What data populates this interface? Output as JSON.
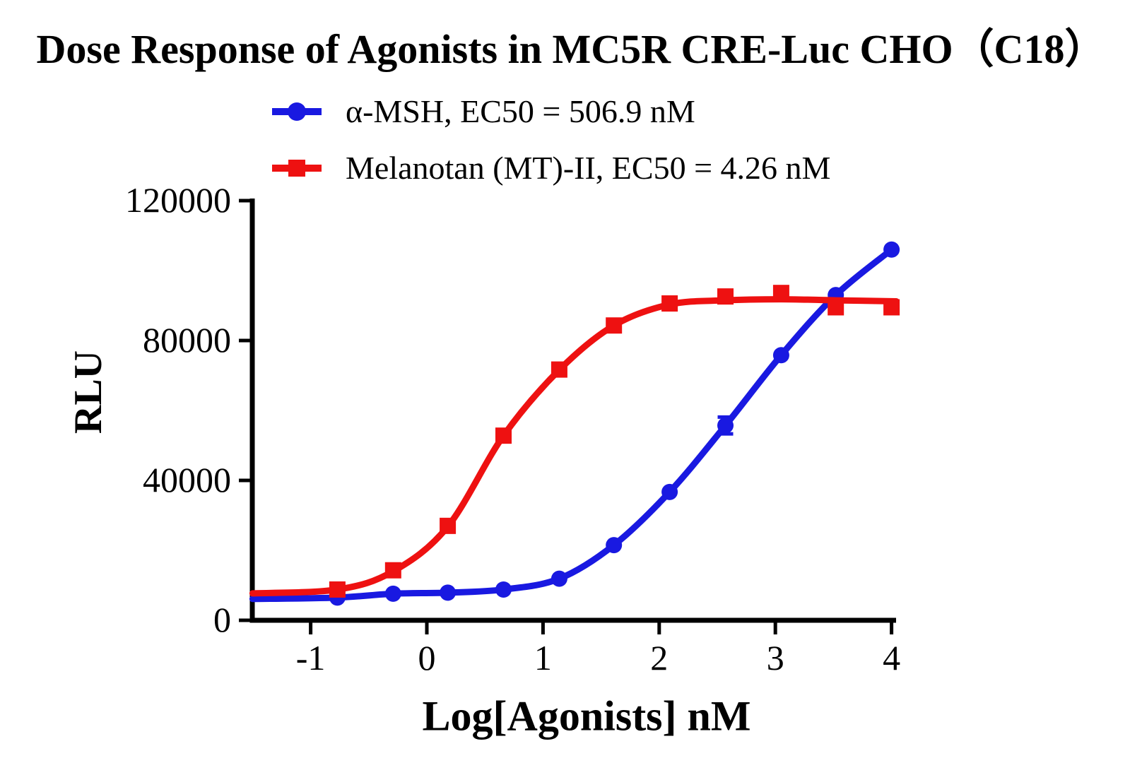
{
  "title": "Dose Response of Agonists in MC5R CRE-Luc CHO（C18）",
  "legend": [
    {
      "label": "α-MSH, EC50 = 506.9 nM",
      "marker": "circle",
      "color": "#1919e1"
    },
    {
      "label": "Melanotan (MT)-II, EC50 = 4.26 nM",
      "marker": "square",
      "color": "#ee1111"
    }
  ],
  "axes": {
    "xlabel": "Log[Agonists] nM",
    "ylabel": "RLU"
  },
  "colors": {
    "axis": "#000000",
    "background": "#ffffff"
  },
  "chart_data": {
    "type": "line",
    "title": "Dose Response of Agonists in MC5R CRE-Luc CHO（C18）",
    "xlabel": "Log[Agonists] nM",
    "ylabel": "RLU",
    "xlim": [
      -1.5,
      4.05
    ],
    "ylim": [
      0,
      120000
    ],
    "x_ticks": [
      -1,
      0,
      1,
      2,
      3,
      4
    ],
    "y_ticks": [
      0,
      40000,
      80000,
      120000
    ],
    "grid": false,
    "legend_position": "top",
    "x": [
      -0.77,
      -0.29,
      0.18,
      0.66,
      1.14,
      1.61,
      2.09,
      2.57,
      3.05,
      3.52,
      4.0
    ],
    "series": [
      {
        "name": "α-MSH",
        "ec50": "506.9 nM",
        "color": "#1919e1",
        "marker": "circle",
        "values": [
          6500,
          7600,
          7900,
          8800,
          11900,
          21500,
          36700,
          55700,
          75800,
          93000,
          106000
        ],
        "errors": [
          0,
          0,
          0,
          0,
          0,
          0,
          0,
          2400,
          0,
          0,
          0
        ],
        "curve": [
          [
            -1.5,
            6100
          ],
          [
            -0.77,
            6500
          ],
          [
            -0.29,
            7600
          ],
          [
            0.18,
            7900
          ],
          [
            0.66,
            8800
          ],
          [
            1.14,
            11900
          ],
          [
            1.61,
            21500
          ],
          [
            2.09,
            36700
          ],
          [
            2.57,
            55700
          ],
          [
            3.05,
            75800
          ],
          [
            3.52,
            93000
          ],
          [
            4.0,
            106000
          ]
        ]
      },
      {
        "name": "Melanotan (MT)-II",
        "ec50": "4.26 nM",
        "color": "#ee1111",
        "marker": "square",
        "values": [
          8800,
          14300,
          27000,
          52800,
          71700,
          84300,
          90600,
          92600,
          93600,
          89500,
          89500
        ],
        "errors": [
          0,
          0,
          0,
          0,
          0,
          0,
          0,
          0,
          0,
          0,
          0
        ],
        "curve": [
          [
            -1.5,
            7700
          ],
          [
            -0.77,
            8800
          ],
          [
            -0.29,
            14000
          ],
          [
            0.18,
            26800
          ],
          [
            0.66,
            52800
          ],
          [
            1.14,
            71600
          ],
          [
            1.61,
            84300
          ],
          [
            2.09,
            90300
          ],
          [
            2.57,
            91500
          ],
          [
            3.05,
            91800
          ],
          [
            3.52,
            91500
          ],
          [
            4.04,
            91200
          ]
        ]
      }
    ]
  }
}
